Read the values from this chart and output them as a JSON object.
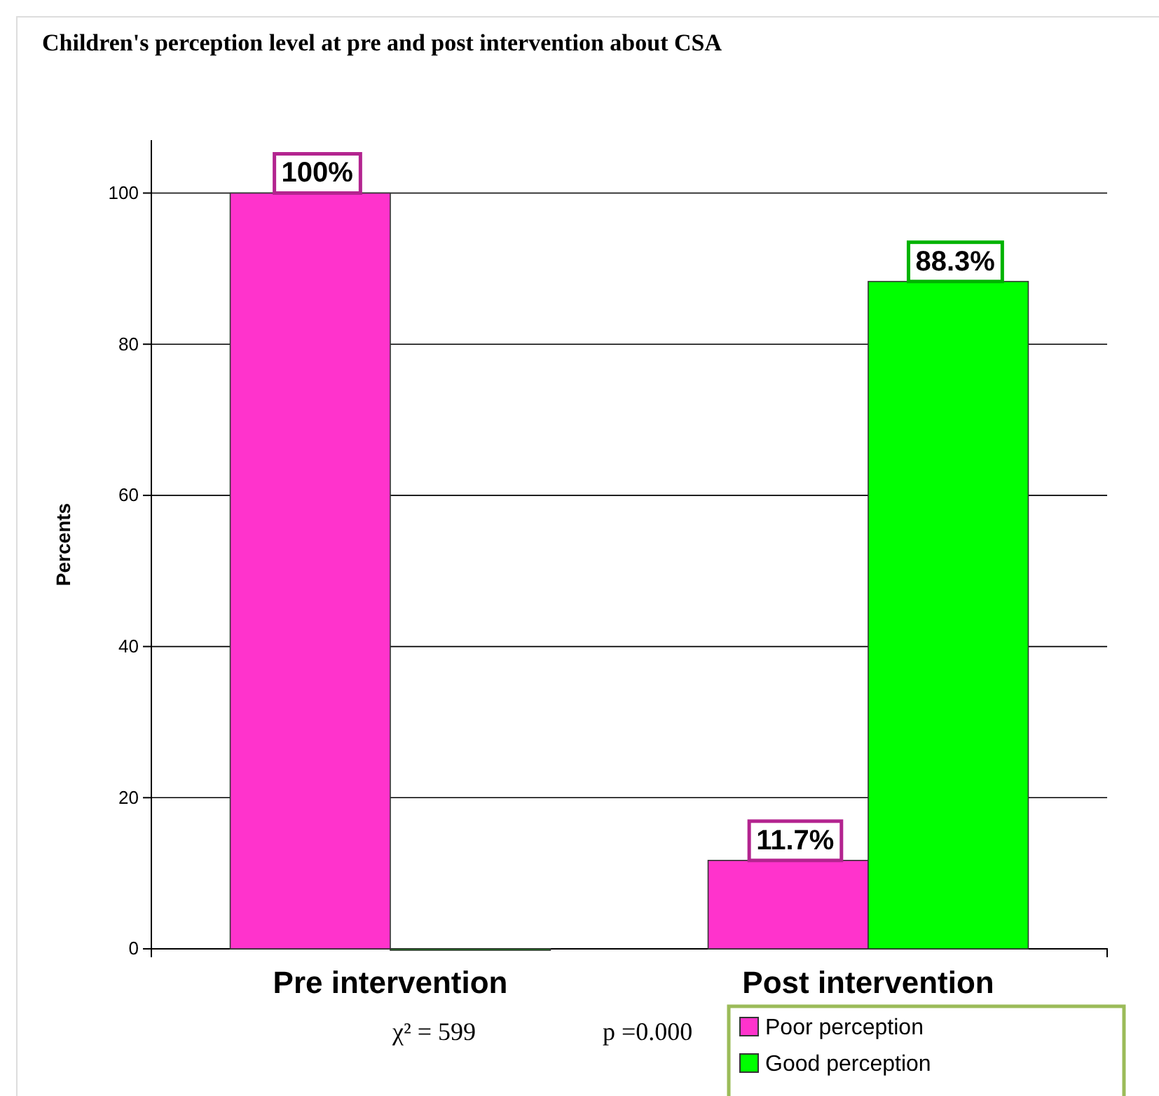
{
  "chart_data": {
    "type": "bar",
    "title": "Children's perception level at pre and post intervention about CSA",
    "ylabel": "Percents",
    "categories": [
      "Pre intervention",
      "Post intervention"
    ],
    "series": [
      {
        "name": "Poor perception",
        "color": "#ff33cc",
        "values": [
          100,
          11.7
        ],
        "value_labels": [
          "100%",
          "11.7%"
        ]
      },
      {
        "name": "Good perception",
        "color": "#00ff00",
        "values": [
          0,
          88.3
        ],
        "value_labels": [
          null,
          "88.3%"
        ]
      }
    ],
    "ylim": [
      0,
      107
    ],
    "yticks": [
      0,
      20,
      40,
      60,
      80,
      100
    ],
    "grid": "y",
    "legend": "bottom right",
    "annotations": [
      "χ² = 599",
      "p =0.000"
    ]
  }
}
